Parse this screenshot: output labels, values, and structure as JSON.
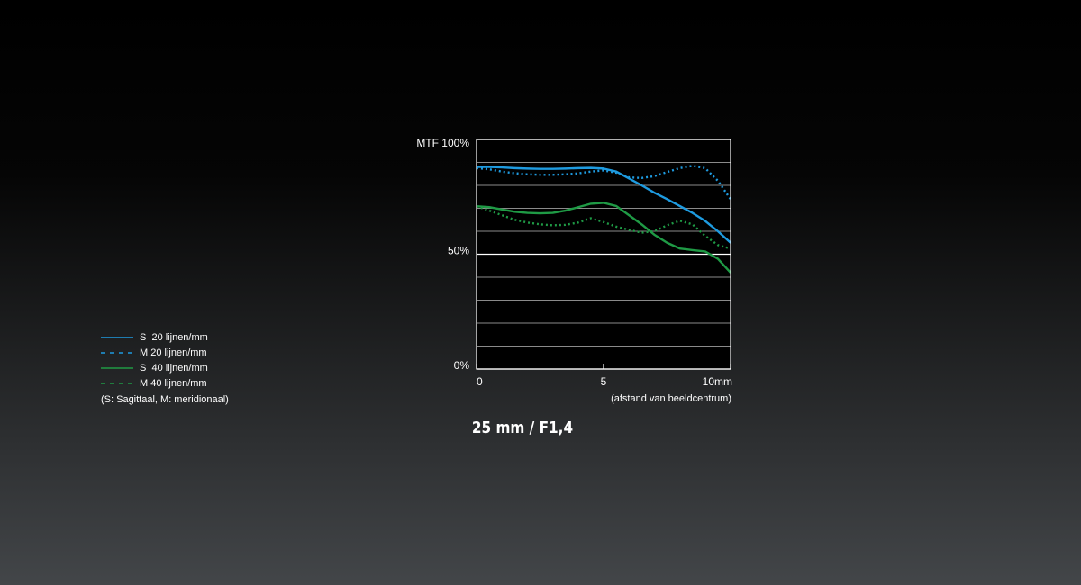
{
  "chart_data": {
    "type": "line",
    "title": "25 mm / F1,4",
    "x_label": "(afstand van beeldcentrum)",
    "x": [
      0,
      0.5,
      1,
      1.5,
      2,
      2.5,
      3,
      3.5,
      4,
      4.5,
      5,
      5.5,
      6,
      6.5,
      7,
      7.5,
      8,
      8.5,
      9,
      9.5,
      10
    ],
    "xlim": [
      0,
      10
    ],
    "xticks": [
      0,
      5,
      {
        "value": 10,
        "label": "10mm"
      }
    ],
    "ylim": [
      0,
      100
    ],
    "yticks": [
      {
        "value": 0,
        "label": "0%"
      },
      {
        "value": 50,
        "label": "50%"
      },
      {
        "value": 100,
        "label": "MTF 100%"
      }
    ],
    "ygrid": [
      10,
      20,
      30,
      40,
      60,
      70,
      80,
      90
    ],
    "series": [
      {
        "name": "S  20 lijnen/mm",
        "color": "#1e9be0",
        "style": "solid",
        "values": [
          88,
          88,
          87.8,
          87.5,
          87.3,
          87.2,
          87.2,
          87.3,
          87.5,
          87.6,
          87.3,
          86,
          83,
          80,
          76.8,
          74,
          71,
          68,
          64.5,
          60,
          55
        ]
      },
      {
        "name": "M 20 lijnen/mm",
        "color": "#1e9be0",
        "style": "dotted",
        "values": [
          87.5,
          87,
          86,
          85.3,
          84.8,
          84.6,
          84.6,
          84.8,
          85.2,
          86,
          86.5,
          85.5,
          83.5,
          83.2,
          84,
          85.8,
          87.5,
          88.5,
          87.5,
          82,
          74
        ]
      },
      {
        "name": "S  40 lijnen/mm",
        "color": "#1f9a45",
        "style": "solid",
        "values": [
          70.9,
          70.5,
          69.5,
          68.5,
          68,
          67.8,
          68,
          69,
          70.5,
          72,
          72.4,
          71,
          67,
          63,
          58.5,
          55,
          52.5,
          51.8,
          51.2,
          48,
          42
        ]
      },
      {
        "name": "M 40 lijnen/mm",
        "color": "#1f9a45",
        "style": "dotted",
        "values": [
          70.9,
          69,
          67,
          65,
          63.8,
          63,
          62.6,
          62.8,
          63.8,
          65.7,
          64,
          62,
          60.6,
          59.4,
          60,
          62.6,
          64.6,
          63,
          58,
          54,
          52.4
        ]
      }
    ],
    "legend_note": "(S: Sagittaal, M: meridionaal)"
  }
}
